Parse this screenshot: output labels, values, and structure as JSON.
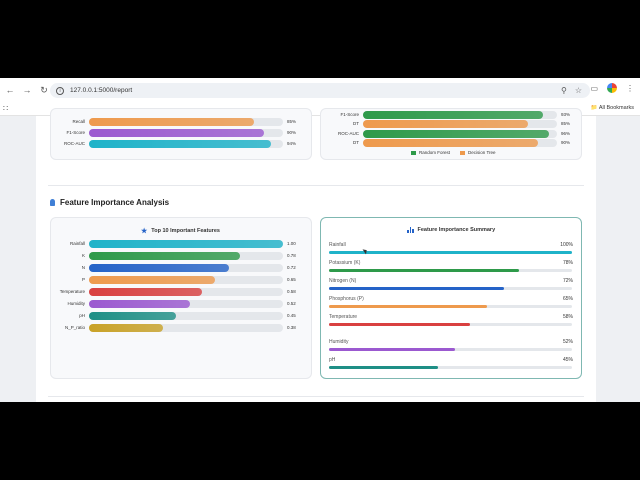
{
  "browser": {
    "url": "127.0.0.1:5000/report",
    "bookmarks_label": "All Bookmarks",
    "icons": [
      "back-arrow-icon",
      "forward-arrow-icon",
      "reload-icon",
      "site-info-icon",
      "zoom-icon",
      "star-icon",
      "extensions-icon",
      "profile-avatar",
      "menu-dots-icon",
      "apps-grid-icon",
      "folder-icon"
    ]
  },
  "top_left_chart": {
    "rows": [
      {
        "label": "Recall",
        "value": "85%",
        "pct": 85,
        "color": "#ee9a4d"
      },
      {
        "label": "F1-Score",
        "value": "90%",
        "pct": 90,
        "color": "#9b59d0"
      },
      {
        "label": "ROC-AUC",
        "value": "94%",
        "pct": 94,
        "color": "#1fb3c9"
      }
    ]
  },
  "top_right_chart": {
    "rows": [
      {
        "label": "F1-Score",
        "value": "93%",
        "pct": 93,
        "color": "#2e9a4a"
      },
      {
        "label": "DT",
        "value": "85%",
        "pct": 85,
        "color": "#ee9a4d"
      },
      {
        "label": "ROC-AUC",
        "value": "96%",
        "pct": 96,
        "color": "#2e9a4a"
      },
      {
        "label": "DT",
        "value": "90%",
        "pct": 90,
        "color": "#ee9a4d"
      }
    ],
    "legend": [
      {
        "label": "Random Forest",
        "color": "#2e9a4a"
      },
      {
        "label": "Decision Tree",
        "color": "#ee9a4d"
      }
    ]
  },
  "section": {
    "title": "Feature Importance Analysis",
    "icon": "lightbulb-icon"
  },
  "features_card": {
    "title": "Top 10 Important Features",
    "icon": "star-icon",
    "rows": [
      {
        "label": "Rainfall",
        "value": "1.00",
        "pct": 100,
        "color": "#1fb3c9"
      },
      {
        "label": "K",
        "value": "0.78",
        "pct": 78,
        "color": "#2e9a4a"
      },
      {
        "label": "N",
        "value": "0.72",
        "pct": 72,
        "color": "#2563c8"
      },
      {
        "label": "P",
        "value": "0.65",
        "pct": 65,
        "color": "#ee9a4d"
      },
      {
        "label": "Temperature",
        "value": "0.58",
        "pct": 58,
        "color": "#d94040"
      },
      {
        "label": "Humidity",
        "value": "0.52",
        "pct": 52,
        "color": "#9b59d0"
      },
      {
        "label": "pH",
        "value": "0.45",
        "pct": 45,
        "color": "#1e8f86"
      },
      {
        "label": "N_P_ratio",
        "value": "0.38",
        "pct": 38,
        "color": "#c9a227"
      }
    ]
  },
  "summary_card": {
    "title": "Feature Importance Summary",
    "icon": "bar-chart-icon",
    "rows": [
      {
        "label": "Rainfall",
        "value": "100%",
        "pct": 100,
        "color": "#1fb3c9"
      },
      {
        "label": "Potassium (K)",
        "value": "78%",
        "pct": 78,
        "color": "#2e9a4a"
      },
      {
        "label": "Nitrogen (N)",
        "value": "72%",
        "pct": 72,
        "color": "#2563c8"
      },
      {
        "label": "Phosphorus (P)",
        "value": "65%",
        "pct": 65,
        "color": "#ee9a4d"
      },
      {
        "label": "Temperature",
        "value": "58%",
        "pct": 58,
        "color": "#d94040"
      },
      {
        "label": "Humidity",
        "value": "52%",
        "pct": 52,
        "color": "#9b59d0"
      },
      {
        "label": "pH",
        "value": "45%",
        "pct": 45,
        "color": "#1e8f86"
      }
    ]
  }
}
